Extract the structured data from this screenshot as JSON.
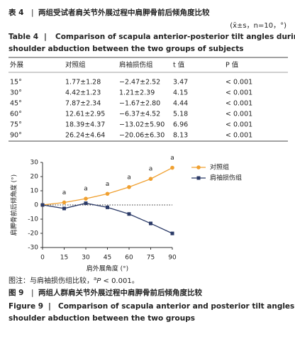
{
  "table_caption": {
    "label": "表 4",
    "title": "两组受试者肩关节外展过程中肩胛骨前后倾角度比较",
    "notation": "(x̄±s，n=10，°)"
  },
  "table_caption_en": {
    "label": "Table 4",
    "title_lines": [
      "Comparison of scapula anterior-posterior tilt angles during",
      "shoulder abduction between the two groups of subjects"
    ]
  },
  "table": {
    "headers": [
      "外展",
      "对照组",
      "肩袖损伤组",
      "t 值",
      "P 值"
    ],
    "rows": [
      [
        "15°",
        "1.77±1.28",
        "−2.47±2.52",
        "3.47",
        "< 0.001"
      ],
      [
        "30°",
        "4.42±1.23",
        "1.21±2.39",
        "4.15",
        "< 0.001"
      ],
      [
        "45°",
        "7.87±2.34",
        "−1.67±2.80",
        "4.44",
        "< 0.001"
      ],
      [
        "60°",
        "12.61±2.95",
        "−6.37±4.52",
        "5.18",
        "< 0.001"
      ],
      [
        "75°",
        "18.39±4.37",
        "−13.02±5.90",
        "6.96",
        "< 0.001"
      ],
      [
        "90°",
        "26.24±4.64",
        "−20.06±6.30",
        "8.13",
        "< 0.001"
      ]
    ]
  },
  "chart_data": {
    "type": "line",
    "x_label": "肩外展角度 (°)",
    "y_label": "肩胛骨前后倾角度 (°)",
    "x": [
      0,
      15,
      30,
      45,
      60,
      75,
      90
    ],
    "series": [
      {
        "name": "对照组",
        "color": "#f0a030",
        "marker": "circle",
        "values": [
          0,
          1.77,
          4.42,
          7.87,
          12.61,
          18.39,
          26.24
        ]
      },
      {
        "name": "肩袖损伤组",
        "color": "#2b3a67",
        "marker": "square",
        "values": [
          0,
          -2.47,
          1.21,
          -1.67,
          -6.37,
          -13.02,
          -20.06
        ]
      }
    ],
    "annotations": [
      "a",
      "a",
      "a",
      "a",
      "a",
      "a"
    ],
    "annotation_x": [
      15,
      30,
      45,
      60,
      75,
      90
    ],
    "xlim": [
      0,
      90
    ],
    "xticks": [
      0,
      15,
      30,
      45,
      60,
      75,
      90
    ],
    "ylim": [
      -30,
      30
    ],
    "yticks": [
      -30,
      -20,
      -10,
      0,
      10,
      20,
      30
    ],
    "zero_line": true,
    "legend": "upper right"
  },
  "figure_note": {
    "prefix": "图注：与肩袖损伤组比较，",
    "superscript": "a",
    "italic": "P",
    "suffix": " < 0.001。"
  },
  "figure_caption": {
    "label": "图 9",
    "title": "两组人群肩关节外展过程中肩胛骨前后倾角度比较"
  },
  "figure_caption_en": {
    "label": "Figure 9",
    "title_lines": [
      "Comparison of scapula anterior and posterior tilt angles during",
      "shoulder abduction between the two groups"
    ]
  }
}
